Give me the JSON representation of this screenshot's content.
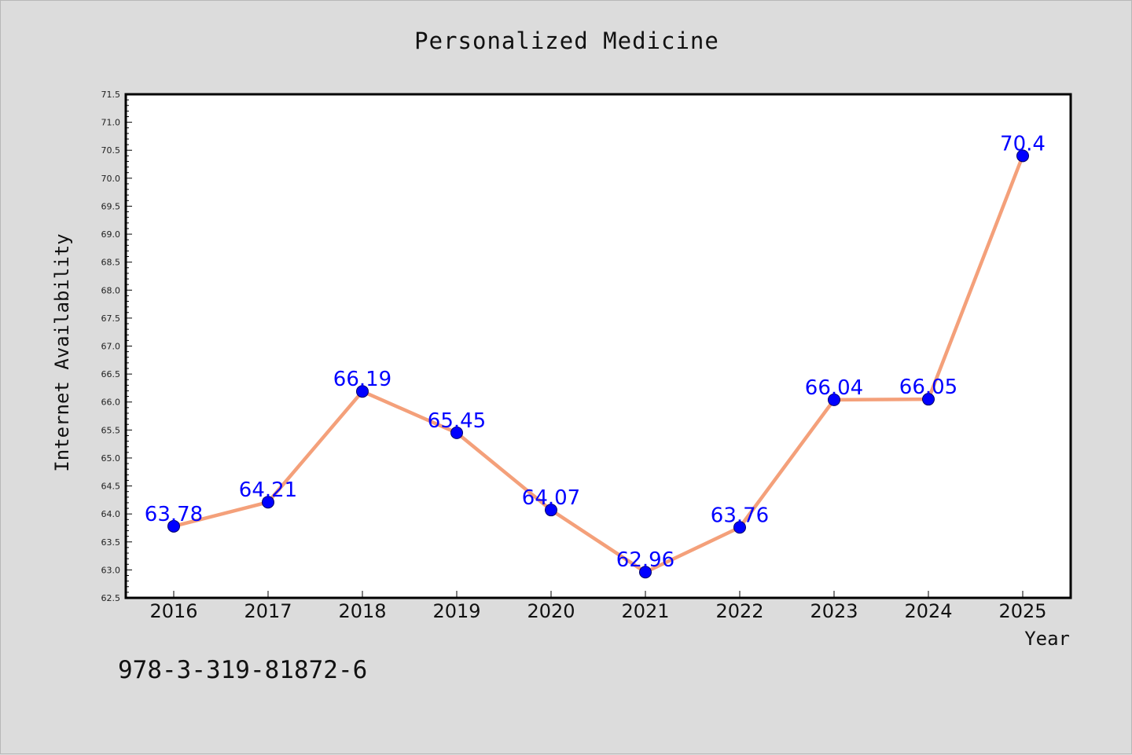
{
  "chart_data": {
    "type": "line",
    "title": "Personalized Medicine",
    "xlabel": "Year",
    "ylabel": "Internet Availability",
    "categories": [
      "2016",
      "2017",
      "2018",
      "2019",
      "2020",
      "2021",
      "2022",
      "2023",
      "2024",
      "2025"
    ],
    "values": [
      63.78,
      64.21,
      66.19,
      65.45,
      64.07,
      62.96,
      63.76,
      66.04,
      66.05,
      70.4
    ],
    "data_labels": [
      "63.78",
      "64.21",
      "66.19",
      "65.45",
      "64.07",
      "62.96",
      "63.76",
      "66.04",
      "66.05",
      "70.4"
    ],
    "ylim": [
      62.5,
      71.5
    ],
    "y_ticks": [
      "62.5",
      "63.0",
      "63.5",
      "64.0",
      "64.5",
      "65.0",
      "65.5",
      "66.0",
      "66.5",
      "67.0",
      "67.5",
      "68.0",
      "68.5",
      "69.0",
      "69.5",
      "70.0",
      "70.5",
      "71.0",
      "71.5"
    ],
    "grid": false,
    "line_color": "#f4a07a",
    "marker_color": "#0000ff",
    "label_color": "#0000ff"
  },
  "footnote": "978-3-319-81872-6"
}
